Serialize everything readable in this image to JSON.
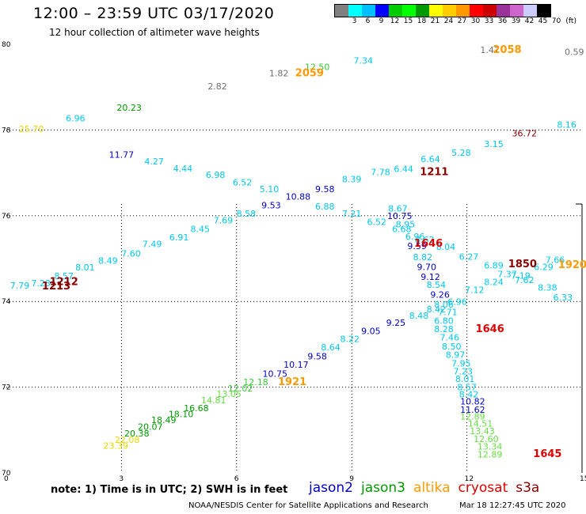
{
  "header": {
    "title": "12:00 – 23:59 UTC 03/17/2020",
    "subtitle": "12 hour collection of altimeter wave heights",
    "units": "(ft)"
  },
  "colorbar": {
    "colors": [
      "#808080",
      "#00ffff",
      "#00bfff",
      "#0000ff",
      "#00cc00",
      "#00ff00",
      "#009900",
      "#ffff00",
      "#ffcc00",
      "#ff9900",
      "#ff0000",
      "#cc0000",
      "#993399",
      "#cc66cc",
      "#ccccff",
      "#000000"
    ],
    "labels": [
      "3",
      "6",
      "9",
      "12",
      "15",
      "18",
      "21",
      "24",
      "27",
      "30",
      "33",
      "36",
      "39",
      "42",
      "45",
      "70"
    ]
  },
  "axes": {
    "x_ticks": [
      "0",
      "3",
      "6",
      "9",
      "12",
      "15"
    ],
    "y_ticks": [
      "80",
      "78",
      "76",
      "74",
      "72",
      "70"
    ]
  },
  "chart_data": {
    "type": "scatter",
    "xlim": [
      0,
      15
    ],
    "ylim": [
      70,
      80
    ],
    "grid": true,
    "colors": {
      "gray": "#707070",
      "cyan": "#00c8e8",
      "blue": "#0000cc",
      "dgreen": "#009900",
      "green": "#33cc33",
      "lgreen": "#66dd44",
      "yellow": "#e8d800",
      "orange": "#ff9900",
      "red": "#dd0000",
      "dred": "#880000"
    },
    "points": [
      {
        "x": 12.6,
        "y": 79.8,
        "label": "1.47",
        "color": "gray"
      },
      {
        "x": 14.8,
        "y": 79.75,
        "label": "0.59",
        "color": "gray"
      },
      {
        "x": 9.3,
        "y": 79.55,
        "label": "7.34",
        "color": "cyan"
      },
      {
        "x": 8.1,
        "y": 79.4,
        "label": "12.50",
        "color": "green"
      },
      {
        "x": 7.1,
        "y": 79.25,
        "label": "1.82",
        "color": "gray"
      },
      {
        "x": 5.5,
        "y": 78.95,
        "label": "2.82",
        "color": "gray"
      },
      {
        "x": 3.2,
        "y": 78.45,
        "label": "20.23",
        "color": "dgreen"
      },
      {
        "x": 1.8,
        "y": 78.2,
        "label": "6.96",
        "color": "cyan"
      },
      {
        "x": 0.65,
        "y": 77.95,
        "label": "25.70",
        "color": "yellow"
      },
      {
        "x": 14.6,
        "y": 78.05,
        "label": "8.16",
        "color": "cyan"
      },
      {
        "x": 13.5,
        "y": 77.85,
        "label": "36.72",
        "color": "dred"
      },
      {
        "x": 12.7,
        "y": 77.6,
        "label": "3.15",
        "color": "cyan"
      },
      {
        "x": 11.85,
        "y": 77.4,
        "label": "5.28",
        "color": "cyan"
      },
      {
        "x": 11.05,
        "y": 77.25,
        "label": "6.64",
        "color": "cyan"
      },
      {
        "x": 10.35,
        "y": 77.02,
        "label": "6.44",
        "color": "cyan"
      },
      {
        "x": 9.75,
        "y": 76.95,
        "label": "7.78",
        "color": "cyan"
      },
      {
        "x": 9.0,
        "y": 76.78,
        "label": "8.39",
        "color": "cyan"
      },
      {
        "x": 8.3,
        "y": 76.55,
        "label": "9.58",
        "color": "blue"
      },
      {
        "x": 3.0,
        "y": 77.35,
        "label": "11.77",
        "color": "blue"
      },
      {
        "x": 3.85,
        "y": 77.2,
        "label": "4.27",
        "color": "cyan"
      },
      {
        "x": 4.6,
        "y": 77.03,
        "label": "4.44",
        "color": "cyan"
      },
      {
        "x": 5.45,
        "y": 76.88,
        "label": "6.98",
        "color": "cyan"
      },
      {
        "x": 6.15,
        "y": 76.71,
        "label": "6.52",
        "color": "cyan"
      },
      {
        "x": 6.85,
        "y": 76.55,
        "label": "5.10",
        "color": "cyan"
      },
      {
        "x": 7.6,
        "y": 76.37,
        "label": "10.88",
        "color": "blue"
      },
      {
        "x": 6.9,
        "y": 76.17,
        "label": "9.53",
        "color": "blue"
      },
      {
        "x": 8.3,
        "y": 76.14,
        "label": "6.88",
        "color": "cyan"
      },
      {
        "x": 6.25,
        "y": 75.98,
        "label": "8.58",
        "color": "cyan"
      },
      {
        "x": 9.0,
        "y": 75.98,
        "label": "7.21",
        "color": "cyan"
      },
      {
        "x": 5.65,
        "y": 75.82,
        "label": "7.69",
        "color": "cyan"
      },
      {
        "x": 9.65,
        "y": 75.78,
        "label": "6.52",
        "color": "cyan"
      },
      {
        "x": 10.2,
        "y": 76.1,
        "label": "8.67",
        "color": "cyan"
      },
      {
        "x": 10.25,
        "y": 75.92,
        "label": "10.75",
        "color": "blue"
      },
      {
        "x": 10.4,
        "y": 75.73,
        "label": "8.95",
        "color": "cyan"
      },
      {
        "x": 10.3,
        "y": 75.62,
        "label": "6.68",
        "color": "cyan"
      },
      {
        "x": 10.65,
        "y": 75.44,
        "label": "6.96",
        "color": "cyan"
      },
      {
        "x": 10.9,
        "y": 75.37,
        "label": "8.62",
        "color": "cyan"
      },
      {
        "x": 10.7,
        "y": 75.22,
        "label": "9.59",
        "color": "blue"
      },
      {
        "x": 11.45,
        "y": 75.2,
        "label": "8.04",
        "color": "cyan"
      },
      {
        "x": 5.05,
        "y": 75.62,
        "label": "8.45",
        "color": "cyan"
      },
      {
        "x": 4.5,
        "y": 75.42,
        "label": "6.91",
        "color": "cyan"
      },
      {
        "x": 3.8,
        "y": 75.27,
        "label": "7.49",
        "color": "cyan"
      },
      {
        "x": 3.25,
        "y": 75.05,
        "label": "7.60",
        "color": "cyan"
      },
      {
        "x": 2.65,
        "y": 74.88,
        "label": "8.49",
        "color": "cyan"
      },
      {
        "x": 2.05,
        "y": 74.72,
        "label": "8.01",
        "color": "cyan"
      },
      {
        "x": 1.5,
        "y": 74.52,
        "label": "8.57",
        "color": "cyan"
      },
      {
        "x": 0.9,
        "y": 74.35,
        "label": "7.23",
        "color": "cyan"
      },
      {
        "x": 0.35,
        "y": 74.3,
        "label": "7.79",
        "color": "cyan"
      },
      {
        "x": 10.85,
        "y": 74.96,
        "label": "8.82",
        "color": "cyan"
      },
      {
        "x": 12.05,
        "y": 74.97,
        "label": "6.27",
        "color": "cyan"
      },
      {
        "x": 10.95,
        "y": 74.73,
        "label": "9.70",
        "color": "blue"
      },
      {
        "x": 12.7,
        "y": 74.77,
        "label": "6.89",
        "color": "cyan"
      },
      {
        "x": 14.3,
        "y": 74.9,
        "label": "7.66",
        "color": "cyan"
      },
      {
        "x": 14.0,
        "y": 74.73,
        "label": "6.29",
        "color": "cyan"
      },
      {
        "x": 11.05,
        "y": 74.5,
        "label": "9.12",
        "color": "blue"
      },
      {
        "x": 13.05,
        "y": 74.57,
        "label": "7.37",
        "color": "cyan"
      },
      {
        "x": 13.4,
        "y": 74.53,
        "label": "7.19",
        "color": "cyan"
      },
      {
        "x": 13.5,
        "y": 74.43,
        "label": "7.62",
        "color": "cyan"
      },
      {
        "x": 12.7,
        "y": 74.38,
        "label": "8.24",
        "color": "cyan"
      },
      {
        "x": 11.2,
        "y": 74.32,
        "label": "8.54",
        "color": "cyan"
      },
      {
        "x": 14.1,
        "y": 74.25,
        "label": "8.38",
        "color": "cyan"
      },
      {
        "x": 12.2,
        "y": 74.2,
        "label": "7.12",
        "color": "cyan"
      },
      {
        "x": 11.3,
        "y": 74.09,
        "label": "9.26",
        "color": "blue"
      },
      {
        "x": 14.5,
        "y": 74.02,
        "label": "6.33",
        "color": "cyan"
      },
      {
        "x": 11.75,
        "y": 73.92,
        "label": "6.96",
        "color": "cyan"
      },
      {
        "x": 11.4,
        "y": 73.86,
        "label": "8.06",
        "color": "cyan"
      },
      {
        "x": 11.2,
        "y": 73.75,
        "label": "8.42",
        "color": "cyan"
      },
      {
        "x": 11.5,
        "y": 73.68,
        "label": "7.71",
        "color": "cyan"
      },
      {
        "x": 10.75,
        "y": 73.6,
        "label": "8.48",
        "color": "cyan"
      },
      {
        "x": 11.4,
        "y": 73.48,
        "label": "6.80",
        "color": "cyan"
      },
      {
        "x": 10.15,
        "y": 73.43,
        "label": "9.25",
        "color": "blue"
      },
      {
        "x": 11.4,
        "y": 73.28,
        "label": "8.28",
        "color": "cyan"
      },
      {
        "x": 9.5,
        "y": 73.24,
        "label": "9.05",
        "color": "blue"
      },
      {
        "x": 11.55,
        "y": 73.09,
        "label": "7.46",
        "color": "cyan"
      },
      {
        "x": 8.95,
        "y": 73.05,
        "label": "8.22",
        "color": "cyan"
      },
      {
        "x": 11.6,
        "y": 72.88,
        "label": "8.50",
        "color": "cyan"
      },
      {
        "x": 8.45,
        "y": 72.86,
        "label": "8.64",
        "color": "cyan"
      },
      {
        "x": 11.7,
        "y": 72.68,
        "label": "8.97",
        "color": "cyan"
      },
      {
        "x": 8.1,
        "y": 72.65,
        "label": "9.58",
        "color": "blue"
      },
      {
        "x": 11.85,
        "y": 72.48,
        "label": "7.95",
        "color": "cyan"
      },
      {
        "x": 7.55,
        "y": 72.45,
        "label": "10.17",
        "color": "blue"
      },
      {
        "x": 11.9,
        "y": 72.3,
        "label": "7.23",
        "color": "cyan"
      },
      {
        "x": 7.0,
        "y": 72.24,
        "label": "10.75",
        "color": "blue"
      },
      {
        "x": 11.95,
        "y": 72.12,
        "label": "8.01",
        "color": "cyan"
      },
      {
        "x": 6.5,
        "y": 72.05,
        "label": "12.18",
        "color": "green"
      },
      {
        "x": 12.0,
        "y": 71.93,
        "label": "8.57",
        "color": "cyan"
      },
      {
        "x": 6.1,
        "y": 71.9,
        "label": "12.02",
        "color": "green"
      },
      {
        "x": 12.05,
        "y": 71.76,
        "label": "8.42",
        "color": "cyan"
      },
      {
        "x": 5.8,
        "y": 71.77,
        "label": "13.05",
        "color": "lgreen"
      },
      {
        "x": 12.15,
        "y": 71.6,
        "label": "10.82",
        "color": "blue"
      },
      {
        "x": 5.4,
        "y": 71.62,
        "label": "14.81",
        "color": "lgreen"
      },
      {
        "x": 12.15,
        "y": 71.4,
        "label": "11.62",
        "color": "blue"
      },
      {
        "x": 4.95,
        "y": 71.44,
        "label": "16.68",
        "color": "dgreen"
      },
      {
        "x": 12.15,
        "y": 71.25,
        "label": "12.89",
        "color": "lgreen"
      },
      {
        "x": 4.55,
        "y": 71.3,
        "label": "18.10",
        "color": "dgreen"
      },
      {
        "x": 12.35,
        "y": 71.08,
        "label": "14.51",
        "color": "lgreen"
      },
      {
        "x": 4.1,
        "y": 71.16,
        "label": "18.49",
        "color": "dgreen"
      },
      {
        "x": 12.4,
        "y": 70.9,
        "label": "13.43",
        "color": "lgreen"
      },
      {
        "x": 3.75,
        "y": 71.01,
        "label": "20.07",
        "color": "dgreen"
      },
      {
        "x": 12.5,
        "y": 70.72,
        "label": "12.60",
        "color": "lgreen"
      },
      {
        "x": 3.4,
        "y": 70.85,
        "label": "20.38",
        "color": "dgreen"
      },
      {
        "x": 12.6,
        "y": 70.54,
        "label": "13.34",
        "color": "lgreen"
      },
      {
        "x": 3.15,
        "y": 70.7,
        "label": "22.08",
        "color": "yellow"
      },
      {
        "x": 12.6,
        "y": 70.36,
        "label": "12.89",
        "color": "lgreen"
      },
      {
        "x": 2.85,
        "y": 70.56,
        "label": "23.39",
        "color": "yellow"
      }
    ],
    "passes": [
      {
        "x": 13.05,
        "y": 79.8,
        "label": "2058",
        "color": "orange"
      },
      {
        "x": 7.9,
        "y": 79.25,
        "label": "2059",
        "color": "orange"
      },
      {
        "x": 11.15,
        "y": 76.95,
        "label": "1211",
        "color": "dred"
      },
      {
        "x": 11.0,
        "y": 75.28,
        "label": "1646",
        "color": "red"
      },
      {
        "x": 13.45,
        "y": 74.8,
        "label": "1850",
        "color": "dred"
      },
      {
        "x": 14.75,
        "y": 74.78,
        "label": "1920",
        "color": "orange"
      },
      {
        "x": 1.5,
        "y": 74.38,
        "label": "1212",
        "color": "dred"
      },
      {
        "x": 1.3,
        "y": 74.28,
        "label": "1213",
        "color": "dred"
      },
      {
        "x": 12.6,
        "y": 73.28,
        "label": "1646",
        "color": "red"
      },
      {
        "x": 7.45,
        "y": 72.05,
        "label": "1921",
        "color": "orange"
      },
      {
        "x": 14.1,
        "y": 70.37,
        "label": "1645",
        "color": "red"
      }
    ]
  },
  "footer": {
    "note": "note: 1) Time is in UTC; 2) SWH is in feet",
    "satellites": [
      {
        "name": "jason2",
        "color": "#0000cc"
      },
      {
        "name": "jason3",
        "color": "#009900"
      },
      {
        "name": "altika",
        "color": "#ff9900"
      },
      {
        "name": "cryosat",
        "color": "#dd0000"
      },
      {
        "name": "s3a",
        "color": "#880000"
      }
    ],
    "credit": "NOAA/NESDIS Center for Satellite Applications and Research",
    "timestamp": "Mar 18 12:27:45 UTC 2020"
  }
}
